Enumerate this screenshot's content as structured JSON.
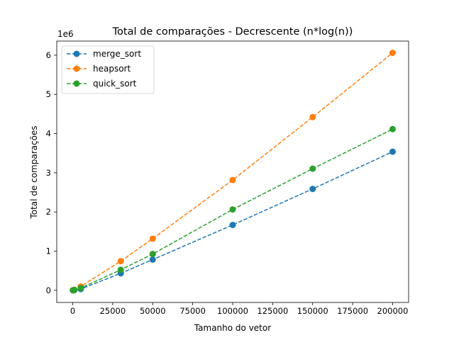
{
  "chart_data": {
    "type": "line",
    "title": "Total de comparações - Decrescente (n*log(n))",
    "xlabel": "Tamanho do vetor",
    "ylabel": "Total de comparações",
    "y_multiplier_label": "1e6",
    "xlim": [
      -10000,
      210000
    ],
    "ylim": [
      -0.31,
      6.36
    ],
    "x_ticks": [
      0,
      25000,
      50000,
      75000,
      100000,
      125000,
      150000,
      175000,
      200000
    ],
    "x_tick_labels": [
      "0",
      "25000",
      "50000",
      "75000",
      "100000",
      "125000",
      "150000",
      "175000",
      "200000"
    ],
    "y_ticks": [
      0,
      1,
      2,
      3,
      4,
      5,
      6
    ],
    "y_tick_labels": [
      "0",
      "1",
      "2",
      "3",
      "4",
      "5",
      "6"
    ],
    "grid": false,
    "legend_position": "upper-left",
    "x": [
      100,
      1000,
      5000,
      30000,
      50000,
      100000,
      150000,
      200000
    ],
    "series": [
      {
        "name": "merge_sort",
        "color": "#1f77b4",
        "line_style": "dashed",
        "marker": "circle",
        "values": [
          0.00032,
          0.005,
          0.032,
          0.434,
          0.784,
          1.668,
          2.587,
          3.537
        ]
      },
      {
        "name": "heapsort",
        "color": "#ff7f0e",
        "line_style": "dashed",
        "marker": "circle",
        "values": [
          0.00094,
          0.0152,
          0.096,
          0.744,
          1.317,
          2.814,
          4.42,
          6.06
        ]
      },
      {
        "name": "quick_sort",
        "color": "#2ca02c",
        "line_style": "dashed",
        "marker": "circle",
        "values": [
          0.00058,
          0.0093,
          0.057,
          0.523,
          0.927,
          2.063,
          3.103,
          4.113
        ]
      }
    ]
  }
}
